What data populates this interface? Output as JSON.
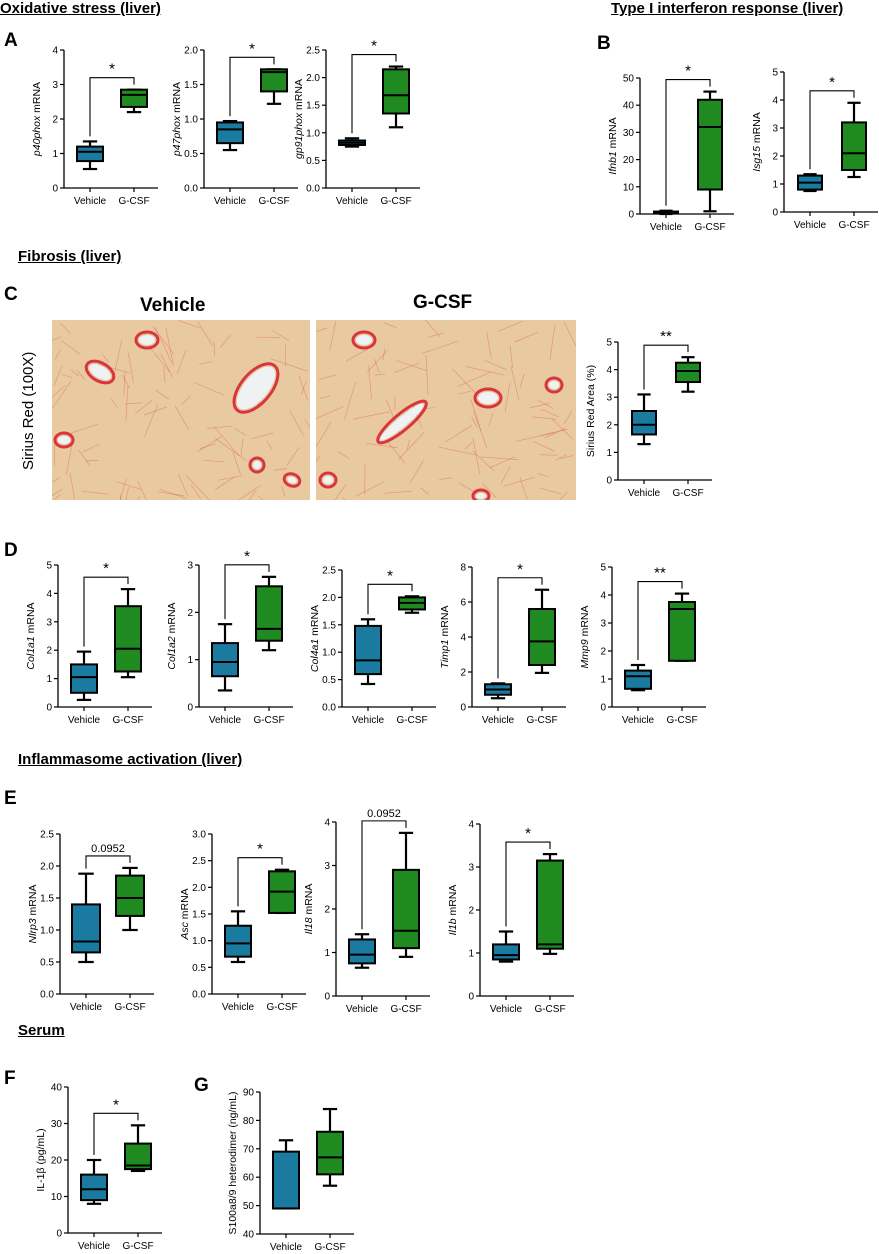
{
  "sections": {
    "oxidative": "Oxidative stress (liver)",
    "interferon": "Type I interferon response (liver)",
    "fibrosis": "Fibrosis (liver)",
    "inflammasome": "Inflammasome activation (liver)",
    "serum": "Serum"
  },
  "panel_letters": {
    "A": "A",
    "B": "B",
    "C": "C",
    "D": "D",
    "E": "E",
    "F": "F",
    "G": "G"
  },
  "histology": {
    "vehicle_label": "Vehicle",
    "gcsf_label": "G-CSF",
    "stain_label": "Sirius Red (100X)"
  },
  "colors": {
    "vehicle": "#1a7aa0",
    "gcsf": "#1f8a1f",
    "tissue": "#e8c9a0",
    "stain": "#d8363f"
  },
  "chart_data": [
    {
      "id": "A1",
      "type": "box",
      "ylabel_italic": "p40phox",
      "ylabel_rest": " mRNA",
      "ylim": [
        0,
        4
      ],
      "yticks": [
        "0",
        "1",
        "2",
        "3",
        "4"
      ],
      "categories": [
        "Vehicle",
        "G-CSF"
      ],
      "boxes": [
        {
          "min": 0.55,
          "q1": 0.78,
          "median": 1.05,
          "q3": 1.2,
          "max": 1.35
        },
        {
          "min": 2.2,
          "q1": 2.35,
          "median": 2.7,
          "q3": 2.85,
          "max": 2.85
        }
      ],
      "sig": "*"
    },
    {
      "id": "A2",
      "type": "box",
      "ylabel_italic": "p47phox",
      "ylabel_rest": " mRNA",
      "ylim": [
        0,
        2
      ],
      "yticks": [
        "0.0",
        "0.5",
        "1.0",
        "1.5",
        "2.0"
      ],
      "categories": [
        "Vehicle",
        "G-CSF"
      ],
      "boxes": [
        {
          "min": 0.55,
          "q1": 0.65,
          "median": 0.85,
          "q3": 0.95,
          "max": 0.97
        },
        {
          "min": 1.22,
          "q1": 1.4,
          "median": 1.68,
          "q3": 1.72,
          "max": 1.72
        }
      ],
      "sig": "*"
    },
    {
      "id": "A3",
      "type": "box",
      "ylabel_italic": "gp91phox",
      "ylabel_rest": " mRNA",
      "ylim": [
        0,
        2.5
      ],
      "yticks": [
        "0.0",
        "0.5",
        "1.0",
        "1.5",
        "2.0",
        "2.5"
      ],
      "categories": [
        "Vehicle",
        "G-CSF"
      ],
      "boxes": [
        {
          "min": 0.75,
          "q1": 0.78,
          "median": 0.82,
          "q3": 0.86,
          "max": 0.9
        },
        {
          "min": 1.1,
          "q1": 1.35,
          "median": 1.68,
          "q3": 2.15,
          "max": 2.2
        }
      ],
      "sig": "*"
    },
    {
      "id": "B1",
      "type": "box",
      "ylabel_italic": "Ifnb1",
      "ylabel_rest": " mRNA",
      "ylim": [
        0,
        50
      ],
      "yticks": [
        "0",
        "10",
        "20",
        "30",
        "40",
        "50"
      ],
      "categories": [
        "Vehicle",
        "G-CSF"
      ],
      "boxes": [
        {
          "min": 0,
          "q1": 0.3,
          "median": 0.6,
          "q3": 0.9,
          "max": 1.2
        },
        {
          "min": 1,
          "q1": 9,
          "median": 32,
          "q3": 42,
          "max": 45
        }
      ],
      "sig": "*"
    },
    {
      "id": "B2",
      "type": "box",
      "ylabel_italic": "Isg15",
      "ylabel_rest": " mRNA",
      "ylim": [
        0,
        5
      ],
      "yticks": [
        "0",
        "1",
        "2",
        "3",
        "4",
        "5"
      ],
      "categories": [
        "Vehicle",
        "G-CSF"
      ],
      "boxes": [
        {
          "min": 0.75,
          "q1": 0.8,
          "median": 1.05,
          "q3": 1.3,
          "max": 1.35
        },
        {
          "min": 1.25,
          "q1": 1.5,
          "median": 2.1,
          "q3": 3.2,
          "max": 3.9
        }
      ],
      "sig": "*"
    },
    {
      "id": "C1",
      "type": "box",
      "ylabel_italic": "",
      "ylabel_rest": "Sirius Red Area (%)",
      "ylim": [
        0,
        5
      ],
      "yticks": [
        "0",
        "1",
        "2",
        "3",
        "4",
        "5"
      ],
      "categories": [
        "Vehicle",
        "G-CSF"
      ],
      "boxes": [
        {
          "min": 1.3,
          "q1": 1.65,
          "median": 2.0,
          "q3": 2.5,
          "max": 3.1
        },
        {
          "min": 3.2,
          "q1": 3.55,
          "median": 3.95,
          "q3": 4.25,
          "max": 4.45
        }
      ],
      "sig": "**"
    },
    {
      "id": "D1",
      "type": "box",
      "ylabel_italic": "Col1a1",
      "ylabel_rest": " mRNA",
      "ylim": [
        0,
        5
      ],
      "yticks": [
        "0",
        "1",
        "2",
        "3",
        "4",
        "5"
      ],
      "categories": [
        "Vehicle",
        "G-CSF"
      ],
      "boxes": [
        {
          "min": 0.25,
          "q1": 0.5,
          "median": 1.05,
          "q3": 1.5,
          "max": 1.95
        },
        {
          "min": 1.05,
          "q1": 1.25,
          "median": 2.05,
          "q3": 3.55,
          "max": 4.15
        }
      ],
      "sig": "*"
    },
    {
      "id": "D2",
      "type": "box",
      "ylabel_italic": "Col1a2",
      "ylabel_rest": " mRNA",
      "ylim": [
        0,
        3
      ],
      "yticks": [
        "0",
        "1",
        "2",
        "3"
      ],
      "categories": [
        "Vehicle",
        "G-CSF"
      ],
      "boxes": [
        {
          "min": 0.35,
          "q1": 0.65,
          "median": 0.95,
          "q3": 1.35,
          "max": 1.75
        },
        {
          "min": 1.2,
          "q1": 1.4,
          "median": 1.65,
          "q3": 2.55,
          "max": 2.75
        }
      ],
      "sig": "*"
    },
    {
      "id": "D3",
      "type": "box",
      "ylabel_italic": "Col4a1",
      "ylabel_rest": " mRNA",
      "ylim": [
        0,
        2.5
      ],
      "yticks": [
        "0.0",
        "0.5",
        "1.0",
        "1.5",
        "2.0",
        "2.5"
      ],
      "categories": [
        "Vehicle",
        "G-CSF"
      ],
      "boxes": [
        {
          "min": 0.42,
          "q1": 0.6,
          "median": 0.85,
          "q3": 1.48,
          "max": 1.6
        },
        {
          "min": 1.72,
          "q1": 1.78,
          "median": 1.9,
          "q3": 2.0,
          "max": 2.02
        }
      ],
      "sig": "*"
    },
    {
      "id": "D4",
      "type": "box",
      "ylabel_italic": "Timp1",
      "ylabel_rest": " mRNA",
      "ylim": [
        0,
        8
      ],
      "yticks": [
        "0",
        "2",
        "4",
        "6",
        "8"
      ],
      "categories": [
        "Vehicle",
        "G-CSF"
      ],
      "boxes": [
        {
          "min": 0.5,
          "q1": 0.7,
          "median": 1.0,
          "q3": 1.3,
          "max": 1.35
        },
        {
          "min": 1.95,
          "q1": 2.4,
          "median": 3.75,
          "q3": 5.6,
          "max": 6.7
        }
      ],
      "sig": "*"
    },
    {
      "id": "D5",
      "type": "box",
      "ylabel_italic": "Mmp9",
      "ylabel_rest": " mRNA",
      "ylim": [
        0,
        5
      ],
      "yticks": [
        "0",
        "1",
        "2",
        "3",
        "4",
        "5"
      ],
      "categories": [
        "Vehicle",
        "G-CSF"
      ],
      "boxes": [
        {
          "min": 0.6,
          "q1": 0.65,
          "median": 1.1,
          "q3": 1.3,
          "max": 1.5
        },
        {
          "min": 1.65,
          "q1": 1.65,
          "median": 3.5,
          "q3": 3.75,
          "max": 4.05
        }
      ],
      "sig": "**"
    },
    {
      "id": "E1",
      "type": "box",
      "ylabel_italic": "Nlrp3",
      "ylabel_rest": " mRNA",
      "ylim": [
        0,
        2.5
      ],
      "yticks": [
        "0.0",
        "0.5",
        "1.0",
        "1.5",
        "2.0",
        "2.5"
      ],
      "categories": [
        "Vehicle",
        "G-CSF"
      ],
      "boxes": [
        {
          "min": 0.5,
          "q1": 0.65,
          "median": 0.82,
          "q3": 1.4,
          "max": 1.88
        },
        {
          "min": 1.0,
          "q1": 1.22,
          "median": 1.5,
          "q3": 1.85,
          "max": 1.97
        }
      ],
      "sig": "0.0952"
    },
    {
      "id": "E2",
      "type": "box",
      "ylabel_italic": "Asc",
      "ylabel_rest": " mRNA",
      "ylim": [
        0,
        3
      ],
      "yticks": [
        "0.0",
        "0.5",
        "1.0",
        "1.5",
        "2.0",
        "2.5",
        "3.0"
      ],
      "categories": [
        "Vehicle",
        "G-CSF"
      ],
      "boxes": [
        {
          "min": 0.6,
          "q1": 0.7,
          "median": 0.95,
          "q3": 1.28,
          "max": 1.55
        },
        {
          "min": 1.52,
          "q1": 1.52,
          "median": 1.92,
          "q3": 2.3,
          "max": 2.33
        }
      ],
      "sig": "*"
    },
    {
      "id": "E3",
      "type": "box",
      "ylabel_italic": "Il18",
      "ylabel_rest": " mRNA",
      "ylim": [
        0,
        4
      ],
      "yticks": [
        "0",
        "1",
        "2",
        "3",
        "4"
      ],
      "categories": [
        "Vehicle",
        "G-CSF"
      ],
      "boxes": [
        {
          "min": 0.65,
          "q1": 0.75,
          "median": 0.95,
          "q3": 1.3,
          "max": 1.42
        },
        {
          "min": 0.9,
          "q1": 1.1,
          "median": 1.5,
          "q3": 2.9,
          "max": 3.75
        }
      ],
      "sig": "0.0952"
    },
    {
      "id": "E4",
      "type": "box",
      "ylabel_italic": "Il1b",
      "ylabel_rest": " mRNA",
      "ylim": [
        0,
        4
      ],
      "yticks": [
        "0",
        "1",
        "2",
        "3",
        "4"
      ],
      "categories": [
        "Vehicle",
        "G-CSF"
      ],
      "boxes": [
        {
          "min": 0.8,
          "q1": 0.85,
          "median": 0.95,
          "q3": 1.2,
          "max": 1.5
        },
        {
          "min": 0.98,
          "q1": 1.1,
          "median": 1.2,
          "q3": 3.15,
          "max": 3.3
        }
      ],
      "sig": "*"
    },
    {
      "id": "F1",
      "type": "box",
      "ylabel_italic": "",
      "ylabel_rest": "IL-1β (pg/mL)",
      "ylim": [
        0,
        40
      ],
      "yticks": [
        "0",
        "10",
        "20",
        "30",
        "40"
      ],
      "categories": [
        "Vehicle",
        "G-CSF"
      ],
      "boxes": [
        {
          "min": 8,
          "q1": 9,
          "median": 12,
          "q3": 16,
          "max": 20
        },
        {
          "min": 17,
          "q1": 17.5,
          "median": 18.5,
          "q3": 24.5,
          "max": 29.5
        }
      ],
      "sig": "*"
    },
    {
      "id": "G1",
      "type": "box",
      "ylabel_italic": "",
      "ylabel_rest": "S100a8/9 heterodimer (ng/mL)",
      "ylim": [
        40,
        90
      ],
      "yticks": [
        "40",
        "50",
        "60",
        "70",
        "80",
        "90"
      ],
      "categories": [
        "Vehicle",
        "G-CSF"
      ],
      "boxes": [
        {
          "min": 49,
          "q1": 49,
          "median": 49,
          "q3": 69,
          "max": 73
        },
        {
          "min": 57,
          "q1": 61,
          "median": 67,
          "q3": 76,
          "max": 84
        }
      ],
      "sig": ""
    }
  ]
}
